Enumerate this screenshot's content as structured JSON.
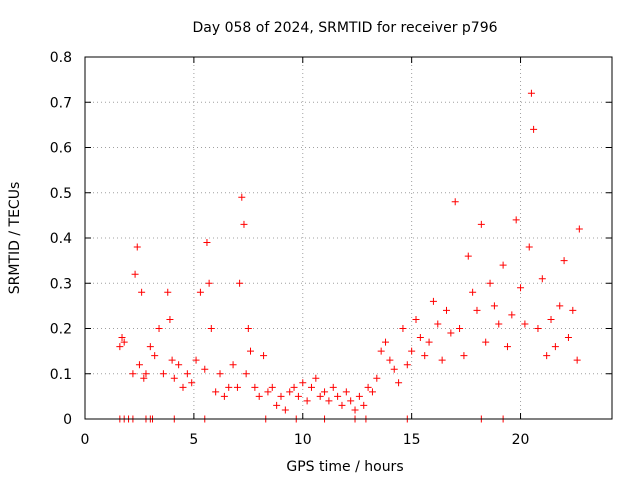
{
  "chart_data": {
    "type": "scatter",
    "title": "Day 058 of 2024, SRMTID for receiver p796",
    "xlabel": "GPS time / hours",
    "ylabel": "SRMTID / TECUs",
    "xlim": [
      0,
      24.2
    ],
    "ylim": [
      0,
      0.8
    ],
    "xticks": [
      0,
      5,
      10,
      15,
      20
    ],
    "yticks": [
      0,
      0.1,
      0.2,
      0.3,
      0.4,
      0.5,
      0.6,
      0.7,
      0.8
    ],
    "ytick_labels": [
      "0",
      "0.1",
      "0.2",
      "0.3",
      "0.4",
      "0.5",
      "0.6",
      "0.7",
      "0.8"
    ],
    "grid": true,
    "marker": "+",
    "series": [
      {
        "name": "SRMTID",
        "color": "#ff0000",
        "x": [
          1.6,
          1.7,
          1.8,
          2.2,
          2.3,
          2.4,
          2.5,
          2.6,
          2.7,
          2.8,
          3.0,
          3.2,
          3.4,
          3.6,
          3.8,
          3.9,
          4.0,
          4.1,
          4.3,
          4.5,
          4.7,
          4.9,
          5.1,
          5.3,
          5.5,
          5.6,
          5.7,
          5.8,
          6.0,
          6.2,
          6.4,
          6.6,
          6.8,
          7.0,
          7.1,
          7.2,
          7.3,
          7.4,
          7.5,
          7.6,
          7.8,
          8.0,
          8.2,
          8.4,
          8.6,
          8.8,
          9.0,
          9.2,
          9.4,
          9.6,
          9.8,
          10.0,
          10.2,
          10.4,
          10.6,
          10.8,
          11.0,
          11.2,
          11.4,
          11.6,
          11.8,
          12.0,
          12.2,
          12.4,
          12.6,
          12.8,
          13.0,
          13.2,
          13.4,
          13.6,
          13.8,
          14.0,
          14.2,
          14.4,
          14.6,
          14.8,
          15.0,
          15.2,
          15.4,
          15.6,
          15.8,
          16.0,
          16.2,
          16.4,
          16.6,
          16.8,
          17.0,
          17.2,
          17.4,
          17.6,
          17.8,
          18.0,
          18.2,
          18.4,
          18.6,
          18.8,
          19.0,
          19.2,
          19.4,
          19.6,
          19.8,
          20.0,
          20.2,
          20.4,
          20.5,
          20.6,
          20.8,
          21.0,
          21.2,
          21.4,
          21.6,
          21.8,
          22.0,
          22.2,
          22.4,
          22.6,
          22.7
        ],
        "y": [
          0.16,
          0.18,
          0.17,
          0.1,
          0.32,
          0.38,
          0.12,
          0.28,
          0.09,
          0.1,
          0.16,
          0.14,
          0.2,
          0.1,
          0.28,
          0.22,
          0.13,
          0.09,
          0.12,
          0.07,
          0.1,
          0.08,
          0.13,
          0.28,
          0.11,
          0.39,
          0.3,
          0.2,
          0.06,
          0.1,
          0.05,
          0.07,
          0.12,
          0.07,
          0.3,
          0.49,
          0.43,
          0.1,
          0.2,
          0.15,
          0.07,
          0.05,
          0.14,
          0.06,
          0.07,
          0.03,
          0.05,
          0.02,
          0.06,
          0.07,
          0.05,
          0.08,
          0.04,
          0.07,
          0.09,
          0.05,
          0.06,
          0.04,
          0.07,
          0.05,
          0.03,
          0.06,
          0.04,
          0.02,
          0.05,
          0.03,
          0.07,
          0.06,
          0.09,
          0.15,
          0.17,
          0.13,
          0.11,
          0.08,
          0.2,
          0.12,
          0.15,
          0.22,
          0.18,
          0.14,
          0.17,
          0.26,
          0.21,
          0.13,
          0.24,
          0.19,
          0.48,
          0.2,
          0.14,
          0.36,
          0.28,
          0.24,
          0.43,
          0.17,
          0.3,
          0.25,
          0.21,
          0.34,
          0.16,
          0.23,
          0.44,
          0.29,
          0.21,
          0.38,
          0.72,
          0.64,
          0.2,
          0.31,
          0.14,
          0.22,
          0.16,
          0.25,
          0.35,
          0.18,
          0.24,
          0.13,
          0.42
        ]
      }
    ],
    "zero_marks_x": [
      1.6,
      1.8,
      2.0,
      2.2,
      2.8,
      3.0,
      3.1,
      4.1,
      5.5,
      8.3,
      9.7,
      11.0,
      12.4,
      12.9,
      14.8,
      18.2,
      19.2
    ]
  }
}
